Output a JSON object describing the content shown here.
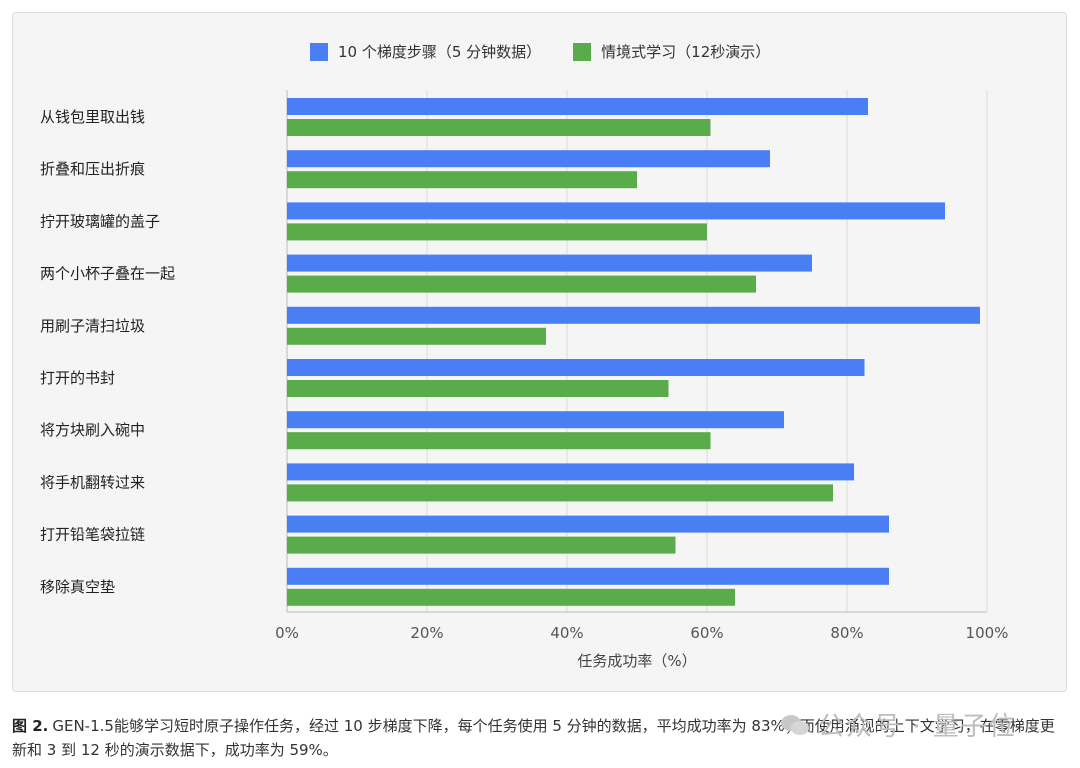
{
  "chart_data": {
    "type": "bar",
    "orientation": "horizontal",
    "categories": [
      "从钱包里取出钱",
      "折叠和压出折痕",
      "拧开玻璃罐的盖子",
      "两个小杯子叠在一起",
      "用刷子清扫垃圾",
      "打开的书封",
      "将方块刷入碗中",
      "将手机翻转过来",
      "打开铅笔袋拉链",
      "移除真空垫"
    ],
    "series": [
      {
        "name": "10 个梯度步骤（5 分钟数据）",
        "color": "#4a7ef5",
        "values": [
          83,
          69,
          94,
          75,
          99,
          82.5,
          71,
          81,
          86,
          86
        ]
      },
      {
        "name": "情境式学习（12秒演示）",
        "color": "#5aab4a",
        "values": [
          60.5,
          50,
          60,
          67,
          37,
          54.5,
          60.5,
          78,
          55.5,
          64
        ]
      }
    ],
    "xlabel": "任务成功率（%）",
    "xlim": [
      0,
      100
    ],
    "xticks": [
      "0%",
      "20%",
      "40%",
      "60%",
      "80%",
      "100%"
    ],
    "legend_position": "top-center",
    "grid": "vertical"
  },
  "caption": {
    "label": "图 2.",
    "text": "GEN-1.5能够学习短时原子操作任务，经过 10 步梯度下降，每个任务使用 5 分钟的数据，平均成功率为 83%；而使用涌现的上下文学习，在零梯度更新和 3 到 12 秒的演示数据下，成功率为 59%。"
  },
  "watermark": {
    "text": "公众号 · 量子位"
  }
}
